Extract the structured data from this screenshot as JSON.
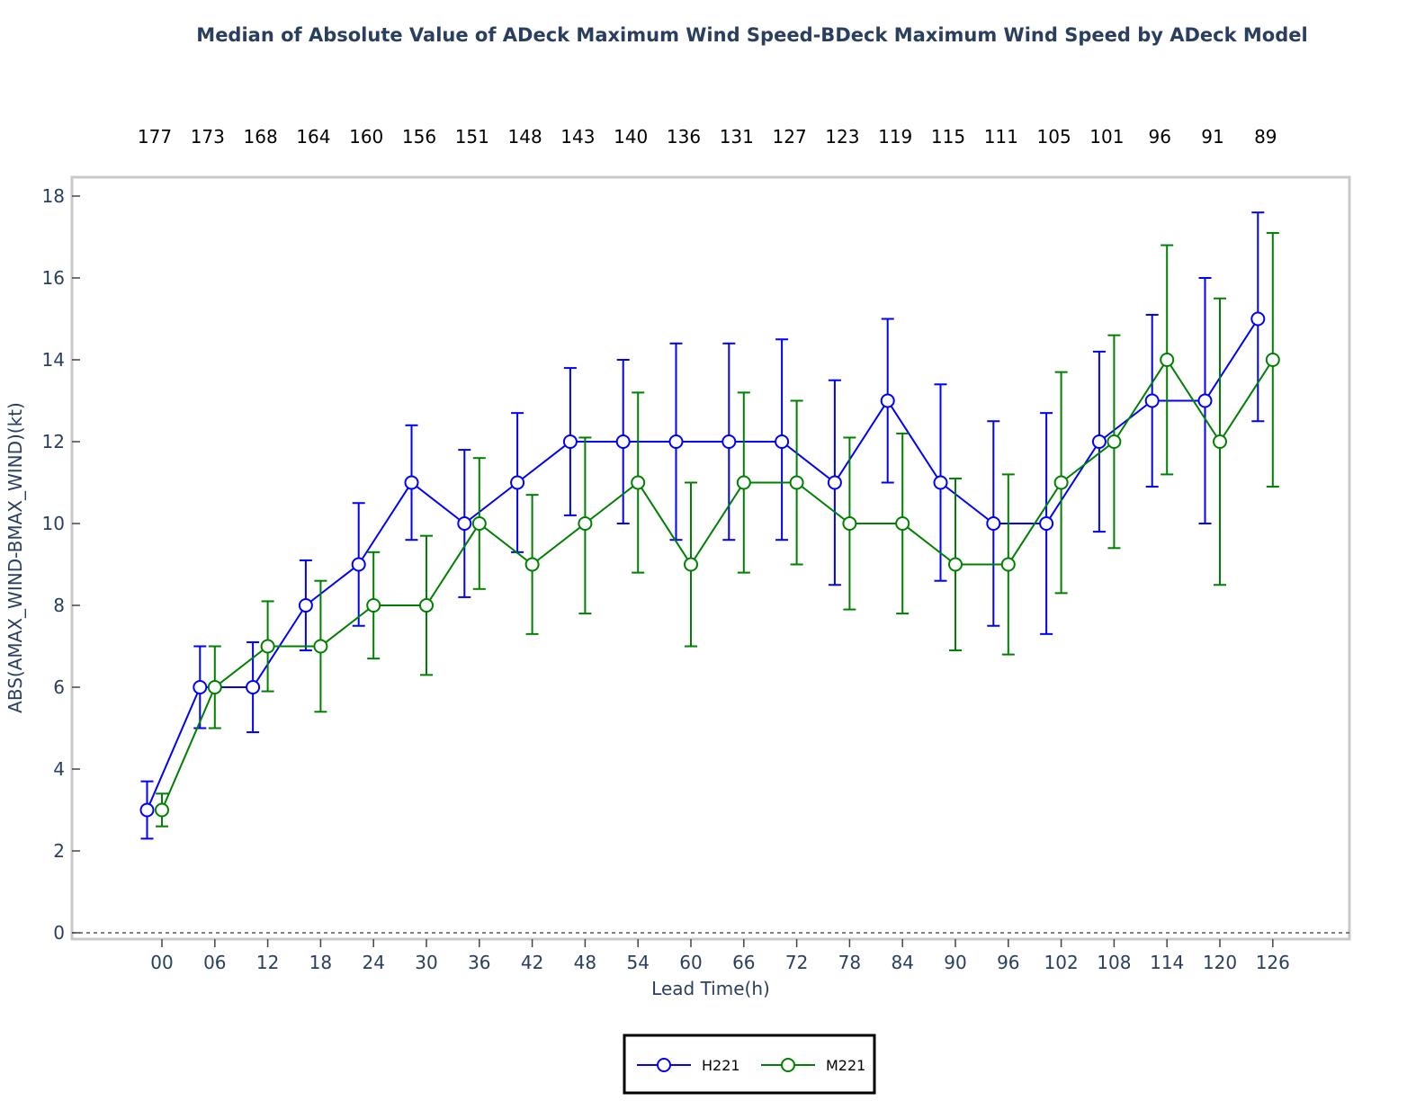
{
  "chart_data": {
    "type": "line",
    "title": "Median of Absolute Value of ADeck Maximum Wind Speed-BDeck Maximum Wind Speed by ADeck Model",
    "xlabel": "Lead Time(h)",
    "ylabel": "ABS(AMAX_WIND-BMAX_WIND)(kt)",
    "categories": [
      "00",
      "06",
      "12",
      "18",
      "24",
      "30",
      "36",
      "42",
      "48",
      "54",
      "60",
      "66",
      "72",
      "78",
      "84",
      "90",
      "96",
      "102",
      "108",
      "114",
      "120",
      "126"
    ],
    "counts": [
      "177",
      "173",
      "168",
      "164",
      "160",
      "156",
      "151",
      "148",
      "143",
      "140",
      "136",
      "131",
      "127",
      "123",
      "119",
      "115",
      "111",
      "105",
      "101",
      "96",
      "91",
      "89"
    ],
    "yticks": [
      "0",
      "2",
      "4",
      "6",
      "8",
      "10",
      "12",
      "14",
      "16",
      "18"
    ],
    "ylim": [
      0,
      18.5
    ],
    "grid": false,
    "legend_position": "bottom-center",
    "series": [
      {
        "name": "H221",
        "color": "#0000ff",
        "values": [
          3,
          6,
          6,
          8,
          9,
          11,
          10,
          11,
          12,
          12,
          12,
          12,
          12,
          11,
          13,
          11,
          10,
          10,
          12,
          13,
          13,
          15
        ],
        "err_low": [
          2.3,
          5.0,
          4.9,
          6.9,
          7.5,
          9.6,
          8.2,
          9.3,
          10.2,
          10.0,
          9.6,
          9.6,
          9.6,
          8.5,
          11.0,
          8.6,
          7.5,
          7.3,
          9.8,
          10.9,
          10.0,
          12.5
        ],
        "err_high": [
          3.7,
          7.0,
          7.1,
          9.1,
          10.5,
          12.4,
          11.8,
          12.7,
          13.8,
          14.0,
          14.4,
          14.4,
          14.5,
          13.5,
          15.0,
          13.4,
          12.5,
          12.7,
          14.2,
          15.1,
          16.0,
          17.6
        ]
      },
      {
        "name": "M221",
        "color": "#008000",
        "values": [
          3,
          6,
          7,
          7,
          8,
          8,
          10,
          9,
          10,
          11,
          9,
          11,
          11,
          10,
          10,
          9,
          9,
          11,
          12,
          14,
          12,
          14
        ],
        "err_low": [
          2.6,
          5.0,
          5.9,
          5.4,
          6.7,
          6.3,
          8.4,
          7.3,
          7.8,
          8.8,
          7.0,
          8.8,
          9.0,
          7.9,
          7.8,
          6.9,
          6.8,
          8.3,
          9.4,
          11.2,
          8.5,
          10.9
        ],
        "err_high": [
          3.4,
          7.0,
          8.1,
          8.6,
          9.3,
          9.7,
          11.6,
          10.7,
          12.1,
          13.2,
          11.0,
          13.2,
          13.0,
          12.1,
          12.2,
          11.1,
          11.2,
          13.7,
          14.6,
          16.8,
          15.5,
          17.1
        ]
      }
    ]
  }
}
